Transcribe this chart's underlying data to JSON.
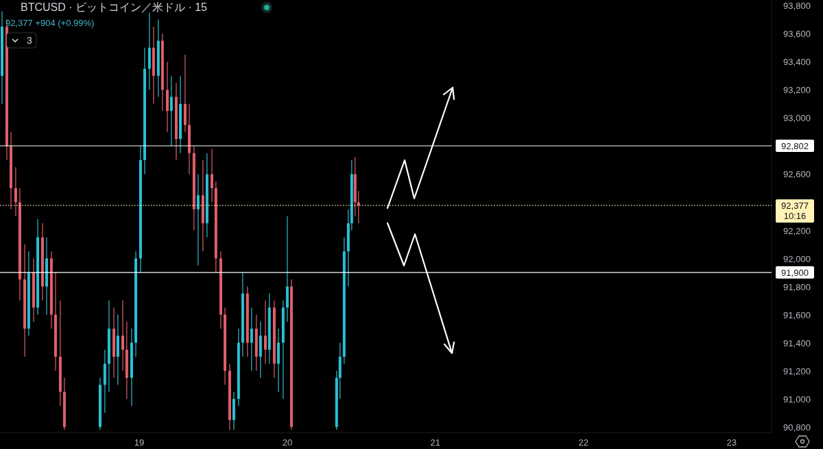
{
  "chart_data": {
    "type": "candlestick",
    "title": "BTCUSD · ビットコイン／米ドル · 15",
    "subtitle": "92,377 +904 (+0.99%)",
    "annotations": [
      "3",
      "10:16"
    ],
    "x": [
      18.074,
      18.106,
      18.134,
      18.166,
      18.194,
      18.227,
      18.254,
      18.287,
      18.315,
      18.347,
      18.375,
      18.407,
      18.435,
      18.467,
      18.495,
      18.736,
      18.768,
      18.796,
      18.829,
      18.856,
      18.889,
      18.916,
      18.949,
      18.977,
      19.009,
      19.037,
      19.069,
      19.097,
      19.129,
      19.157,
      19.19,
      19.217,
      19.25,
      19.278,
      19.31,
      19.338,
      19.37,
      19.398,
      19.43,
      19.458,
      19.491,
      19.518,
      19.551,
      19.579,
      19.611,
      19.639,
      19.671,
      19.699,
      19.731,
      19.759,
      19.791,
      19.819,
      19.852,
      19.879,
      19.912,
      19.94,
      19.972,
      20.0,
      20.028,
      20.333,
      20.356,
      20.384,
      20.412,
      20.435,
      20.458,
      20.481
    ],
    "ohlc": [
      [
        93300,
        93760,
        93100,
        93650
      ],
      [
        93650,
        93700,
        92700,
        92800
      ],
      [
        92800,
        92900,
        92350,
        92500
      ],
      [
        92500,
        92650,
        92300,
        92400
      ],
      [
        92400,
        92500,
        91700,
        91850
      ],
      [
        91850,
        92100,
        91300,
        91500
      ],
      [
        91500,
        92050,
        91450,
        91900
      ],
      [
        91900,
        92000,
        91550,
        91650
      ],
      [
        91650,
        92280,
        91600,
        92150
      ],
      [
        92150,
        92250,
        91700,
        91800
      ],
      [
        91800,
        92150,
        91600,
        92000
      ],
      [
        92000,
        92050,
        91500,
        91600
      ],
      [
        91600,
        91900,
        91200,
        91300
      ],
      [
        91300,
        91700,
        90950,
        91050
      ],
      [
        91050,
        91150,
        90780,
        90800
      ],
      [
        90800,
        91150,
        90780,
        91100
      ],
      [
        91100,
        91350,
        90900,
        91250
      ],
      [
        91250,
        91700,
        91050,
        91500
      ],
      [
        91500,
        91650,
        91150,
        91300
      ],
      [
        91300,
        91600,
        91100,
        91450
      ],
      [
        91450,
        91700,
        91200,
        91350
      ],
      [
        91350,
        91550,
        91000,
        91150
      ],
      [
        91150,
        91500,
        90950,
        91400
      ],
      [
        91400,
        92050,
        91300,
        92000
      ],
      [
        92000,
        92800,
        91900,
        92700
      ],
      [
        92700,
        93500,
        92600,
        93350
      ],
      [
        93350,
        93750,
        93200,
        93500
      ],
      [
        93500,
        93650,
        93100,
        93300
      ],
      [
        93300,
        93700,
        93150,
        93550
      ],
      [
        93550,
        93600,
        93050,
        93200
      ],
      [
        93200,
        93400,
        92900,
        93050
      ],
      [
        93050,
        93300,
        92800,
        93150
      ],
      [
        93150,
        93250,
        92700,
        92850
      ],
      [
        92850,
        93300,
        92750,
        93100
      ],
      [
        93100,
        93450,
        92900,
        92950
      ],
      [
        92950,
        93100,
        92600,
        92750
      ],
      [
        92750,
        92800,
        92200,
        92350
      ],
      [
        92350,
        92600,
        91950,
        92450
      ],
      [
        92450,
        92700,
        92050,
        92250
      ],
      [
        92250,
        92750,
        92150,
        92600
      ],
      [
        92600,
        92780,
        92400,
        92500
      ],
      [
        92500,
        92550,
        91900,
        92000
      ],
      [
        92000,
        92050,
        91500,
        91600
      ],
      [
        91600,
        91650,
        91100,
        91200
      ],
      [
        91200,
        91250,
        90780,
        90850
      ],
      [
        90850,
        91050,
        90780,
        91000
      ],
      [
        91000,
        91500,
        90950,
        91400
      ],
      [
        91400,
        91900,
        91300,
        91750
      ],
      [
        91750,
        91800,
        91300,
        91400
      ],
      [
        91400,
        91650,
        91200,
        91500
      ],
      [
        91500,
        91600,
        91200,
        91300
      ],
      [
        91300,
        91550,
        91150,
        91450
      ],
      [
        91450,
        91700,
        91250,
        91350
      ],
      [
        91350,
        91750,
        91250,
        91650
      ],
      [
        91650,
        91700,
        91150,
        91250
      ],
      [
        91250,
        91500,
        91050,
        91400
      ],
      [
        91400,
        91700,
        91000,
        91650
      ],
      [
        91650,
        92300,
        91550,
        91800
      ],
      [
        91800,
        91850,
        90780,
        90800
      ],
      [
        90800,
        91200,
        90780,
        91150
      ],
      [
        91150,
        91400,
        91000,
        91300
      ],
      [
        91300,
        92150,
        91250,
        92050
      ],
      [
        92050,
        92350,
        91800,
        92250
      ],
      [
        92250,
        92700,
        92200,
        92600
      ],
      [
        92600,
        92720,
        92300,
        92400
      ],
      [
        92400,
        92480,
        92250,
        92377
      ]
    ],
    "colors": [
      "#2bbfd3",
      "#e0606b",
      "#e0606b",
      "#e0606b",
      "#e0606b",
      "#e0606b",
      "#2bbfd3",
      "#e0606b",
      "#2bbfd3",
      "#e0606b",
      "#2bbfd3",
      "#e0606b",
      "#e0606b",
      "#e0606b",
      "#e0606b",
      "#2bbfd3",
      "#2bbfd3",
      "#2bbfd3",
      "#e0606b",
      "#2bbfd3",
      "#e0606b",
      "#e0606b",
      "#2bbfd3",
      "#2bbfd3",
      "#2bbfd3",
      "#2bbfd3",
      "#2bbfd3",
      "#e0606b",
      "#2bbfd3",
      "#e0606b",
      "#e0606b",
      "#2bbfd3",
      "#e0606b",
      "#2bbfd3",
      "#e0606b",
      "#e0606b",
      "#e0606b",
      "#2bbfd3",
      "#e0606b",
      "#2bbfd3",
      "#e0606b",
      "#e0606b",
      "#e0606b",
      "#e0606b",
      "#e0606b",
      "#2bbfd3",
      "#2bbfd3",
      "#2bbfd3",
      "#e0606b",
      "#2bbfd3",
      "#e0606b",
      "#2bbfd3",
      "#e0606b",
      "#2bbfd3",
      "#e0606b",
      "#2bbfd3",
      "#2bbfd3",
      "#2bbfd3",
      "#e0606b",
      "#2bbfd3",
      "#2bbfd3",
      "#2bbfd3",
      "#2bbfd3",
      "#2bbfd3",
      "#e0606b",
      "#e0606b"
    ],
    "xlim": [
      18.06,
      23.27
    ],
    "xticks": [
      19,
      20,
      21,
      22,
      23
    ],
    "ylim": [
      90760,
      93840
    ],
    "yticks": [
      {
        "value": 90800,
        "label": "90,800"
      },
      {
        "value": 91000,
        "label": "91,000"
      },
      {
        "value": 91200,
        "label": "91,200"
      },
      {
        "value": 91400,
        "label": "91,400"
      },
      {
        "value": 91600,
        "label": "91,600"
      },
      {
        "value": 91800,
        "label": "91,800"
      },
      {
        "value": 92000,
        "label": "92,000"
      },
      {
        "value": 92200,
        "label": "92,200"
      },
      {
        "value": 92600,
        "label": "92,600"
      },
      {
        "value": 93000,
        "label": "93,000"
      },
      {
        "value": 93200,
        "label": "93,200"
      },
      {
        "value": 93400,
        "label": "93,400"
      },
      {
        "value": 93600,
        "label": "93,600"
      },
      {
        "value": 93800,
        "label": "93,800"
      }
    ],
    "ref_lines": [
      {
        "axis": "y",
        "value": 92802,
        "label": "92,802",
        "color": "#ffffff",
        "line_style": "solid"
      },
      {
        "axis": "y",
        "value": 91900,
        "label": "91,900",
        "color": "#ffffff",
        "line_style": "solid"
      },
      {
        "axis": "y",
        "value": 92377,
        "label": "92,377",
        "color": "#fff3b8",
        "line_style": "dotted"
      }
    ]
  }
}
